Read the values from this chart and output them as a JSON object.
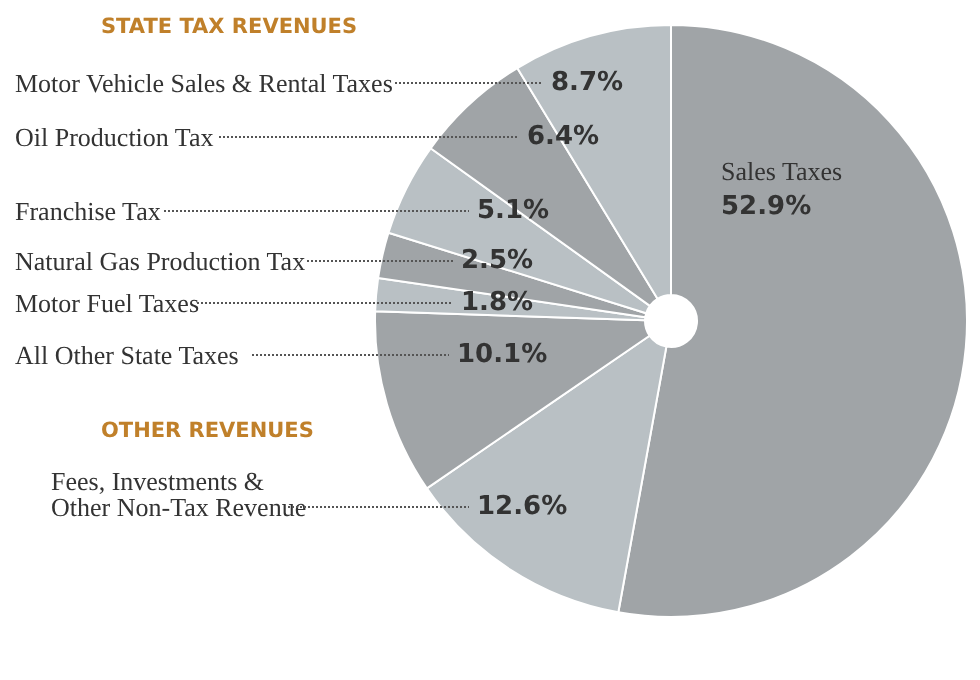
{
  "chart_data": {
    "type": "pie",
    "categories": [
      "Sales Taxes",
      "Fees, Investments &\nOther Non-Tax Revenue",
      "All Other State Taxes",
      "Motor Fuel Taxes",
      "Natural Gas Production Tax",
      "Franchise Tax",
      "Oil Production Tax",
      "Motor Vehicle Sales & Rental Taxes"
    ],
    "values": [
      52.9,
      12.6,
      10.1,
      1.8,
      2.5,
      5.1,
      6.4,
      8.7
    ],
    "colors": [
      "#a0a4a7",
      "#b9c0c4",
      "#a0a4a7",
      "#b9c0c4",
      "#a0a4a7",
      "#b9c0c4",
      "#a0a4a7",
      "#b9c0c4"
    ],
    "value_labels": [
      "52.9%",
      "12.6%",
      "10.1%",
      "1.8%",
      "2.5%",
      "5.1%",
      "6.4%",
      "8.7%"
    ],
    "annotations": [
      "STATE TAX REVENUES",
      "OTHER REVENUES"
    ]
  }
}
